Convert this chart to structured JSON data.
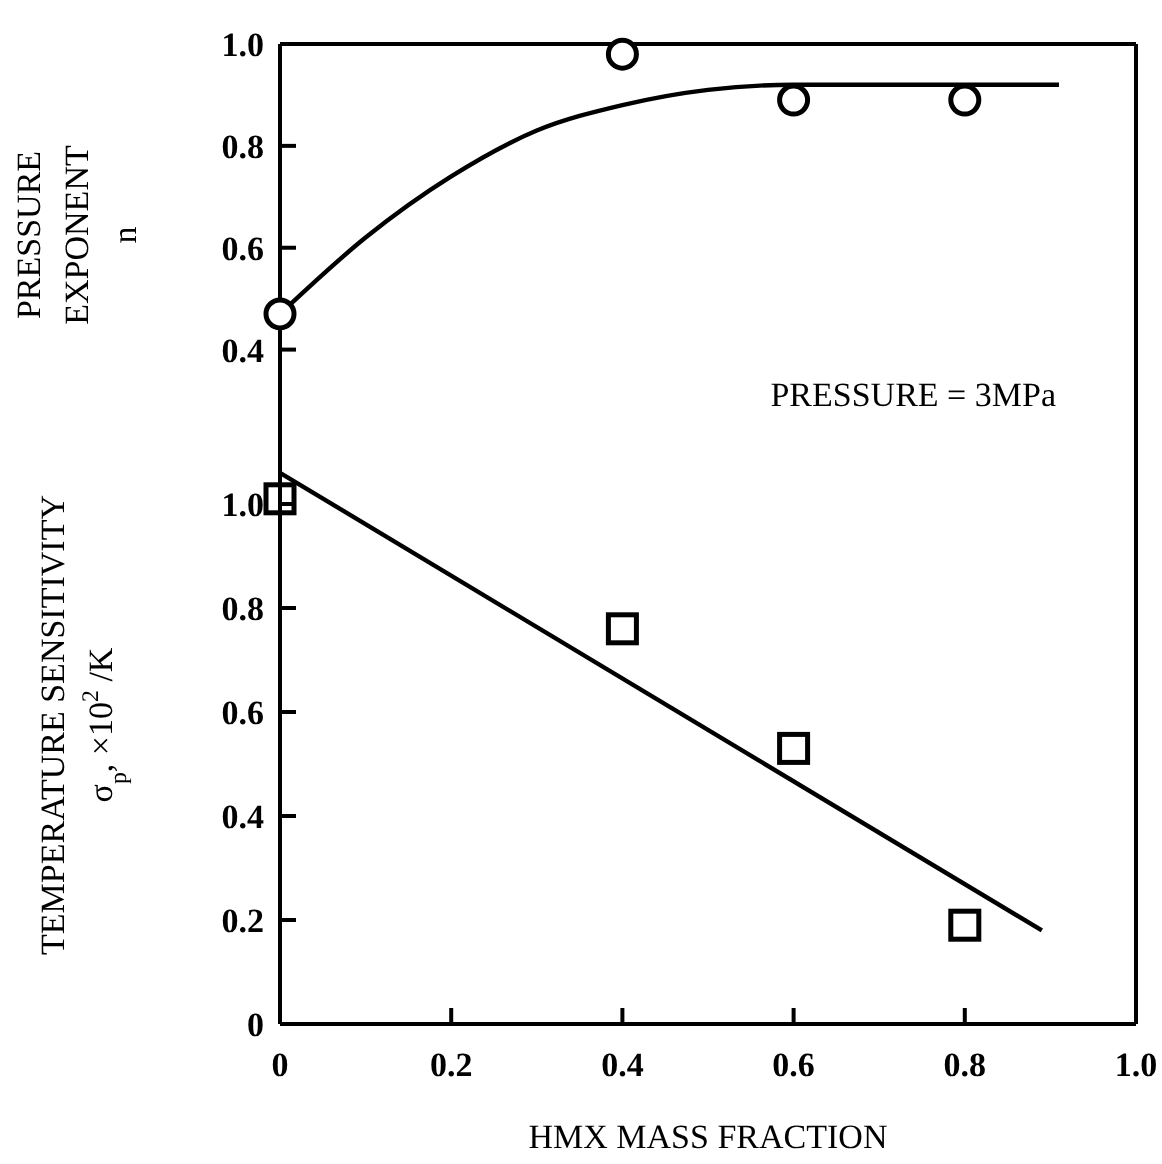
{
  "chart_data": [
    {
      "type": "scatter",
      "ylabel": "PRESSURE\nEXPONENT\nn",
      "annotations": [
        "PRESSURE = 3MPa"
      ],
      "xlim": [
        0,
        1.0
      ],
      "ylim": [
        0.25,
        1.0
      ],
      "yticks": [
        0.4,
        0.6,
        0.8,
        {
          "value": 1.0,
          "label": "1.0"
        }
      ],
      "tick_labels": "y",
      "series": [
        {
          "type": "scatter",
          "marker": "circle",
          "color": "#000000",
          "x": [
            0,
            0.4,
            0.6,
            0.8
          ],
          "values": [
            0.47,
            0.98,
            0.89,
            0.89
          ]
        },
        {
          "type": "line",
          "marker": "none",
          "color": "#000000",
          "x": [
            0,
            0.1,
            0.2,
            0.3,
            0.4,
            0.5,
            0.6,
            0.7,
            0.8,
            0.91
          ],
          "values": [
            0.47,
            0.62,
            0.74,
            0.83,
            0.88,
            0.91,
            0.92,
            0.92,
            0.92,
            0.92
          ]
        }
      ]
    },
    {
      "type": "scatter",
      "xlabel": "HMX MASS FRACTION",
      "ylabel": "TEMPERATURE SENSITIVITY\nσ$_{p}$, ×10$^{2}$ /K",
      "xlim": [
        0,
        1.0
      ],
      "ylim": [
        0,
        1.15
      ],
      "xticks": [
        0,
        0.2,
        0.4,
        0.6,
        0.8,
        {
          "value": 1.0,
          "label": "1.0"
        }
      ],
      "yticks": [
        0,
        0.2,
        0.4,
        0.6,
        0.8,
        {
          "value": 1.0,
          "label": "1.0"
        }
      ],
      "series": [
        {
          "type": "scatter",
          "marker": "square",
          "color": "#000000",
          "x": [
            0,
            0.4,
            0.6,
            0.8
          ],
          "values": [
            1.01,
            0.76,
            0.53,
            0.19
          ]
        },
        {
          "type": "line",
          "marker": "none",
          "color": "#000000",
          "x": [
            0,
            0.89
          ],
          "values": [
            1.06,
            0.18
          ]
        }
      ]
    }
  ]
}
